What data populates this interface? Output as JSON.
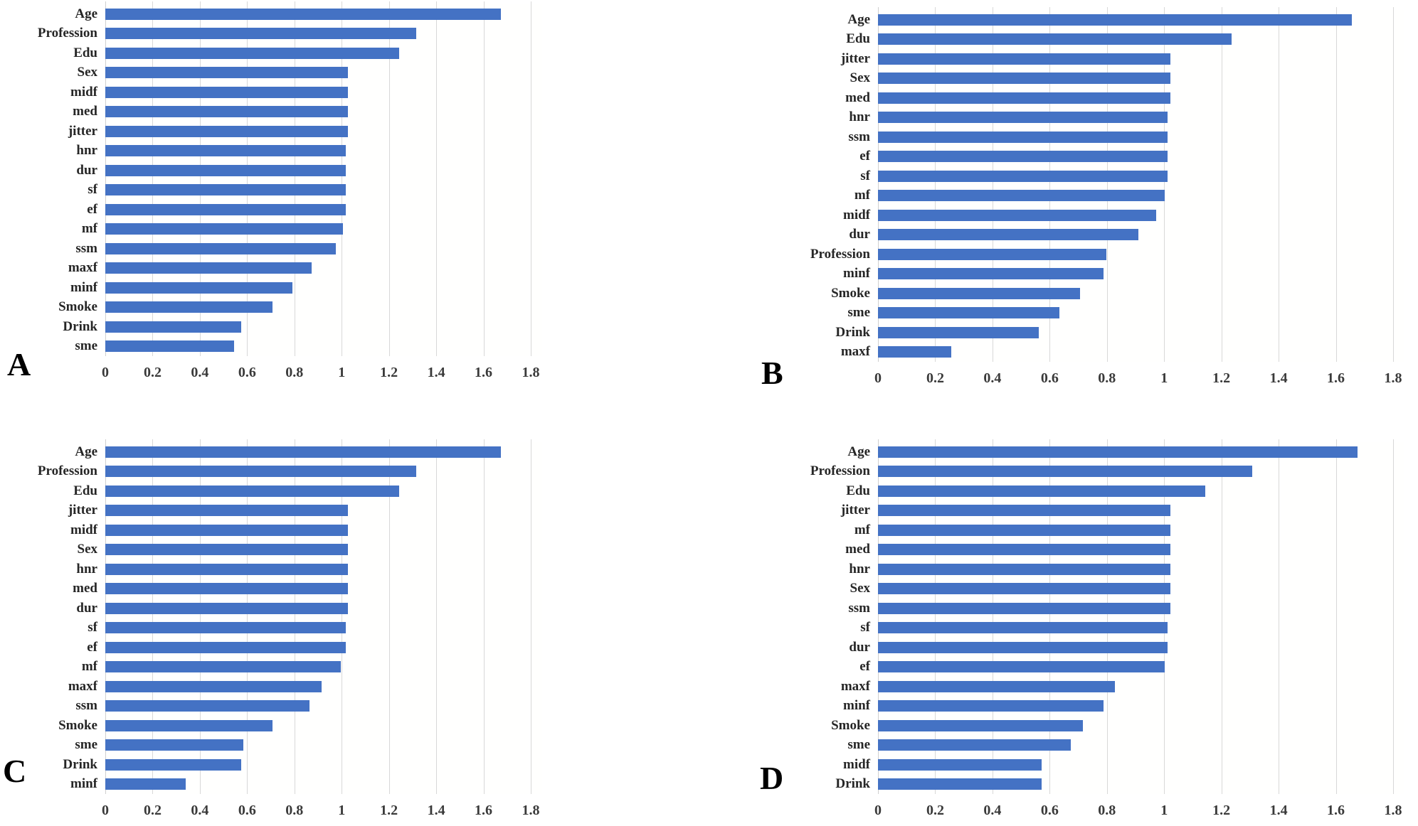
{
  "figure": {
    "panel_labels": {
      "a": "A",
      "b": "B",
      "c": "C",
      "d": "D"
    }
  },
  "style": {
    "bar_color": "#4472C4",
    "gridline_color": "#d8d8d8",
    "zero_line_color": "#cfcfcf",
    "category_label_color": "#262626",
    "tick_label_color": "#3a3a3a",
    "panel_letter_color": "#000000"
  },
  "axis": {
    "ticks": [
      0,
      0.2,
      0.4,
      0.6,
      0.8,
      1,
      1.2,
      1.4,
      1.6,
      1.8
    ],
    "tick_labels": [
      "0",
      "0.2",
      "0.4",
      "0.6",
      "0.8",
      "1",
      "1.2",
      "1.4",
      "1.6",
      "1.8"
    ],
    "max": 1.8
  },
  "chart_data": [
    {
      "id": "A",
      "type": "bar",
      "orientation": "horizontal",
      "panel_label": "A",
      "title": "",
      "xlabel": "",
      "ylabel": "",
      "xlim": [
        0,
        1.8
      ],
      "grid": true,
      "categories": [
        "Age",
        "Profession",
        "Edu",
        "Sex",
        "midf",
        "med",
        "jitter",
        "hnr",
        "dur",
        "sf",
        "ef",
        "mf",
        "ssm",
        "maxf",
        "minf",
        "Smoke",
        "Drink",
        "sme"
      ],
      "values": [
        1.63,
        1.28,
        1.21,
        1.0,
        1.0,
        1.0,
        1.0,
        0.99,
        0.99,
        0.99,
        0.99,
        0.98,
        0.95,
        0.85,
        0.77,
        0.69,
        0.56,
        0.53
      ]
    },
    {
      "id": "B",
      "type": "bar",
      "orientation": "horizontal",
      "panel_label": "B",
      "title": "",
      "xlabel": "",
      "ylabel": "",
      "xlim": [
        0,
        1.8
      ],
      "grid": true,
      "categories": [
        "Age",
        "Edu",
        "jitter",
        "Sex",
        "med",
        "hnr",
        "ssm",
        "ef",
        "sf",
        "mf",
        "midf",
        "dur",
        "Profession",
        "minf",
        "Smoke",
        "sme",
        "Drink",
        "maxf"
      ],
      "values": [
        1.62,
        1.21,
        1.0,
        1.0,
        1.0,
        0.99,
        0.99,
        0.99,
        0.99,
        0.98,
        0.95,
        0.89,
        0.78,
        0.77,
        0.69,
        0.62,
        0.55,
        0.25
      ]
    },
    {
      "id": "C",
      "type": "bar",
      "orientation": "horizontal",
      "panel_label": "C",
      "title": "",
      "xlabel": "",
      "ylabel": "",
      "xlim": [
        0,
        1.8
      ],
      "grid": true,
      "categories": [
        "Age",
        "Profession",
        "Edu",
        "jitter",
        "midf",
        "Sex",
        "hnr",
        "med",
        "dur",
        "sf",
        "ef",
        "mf",
        "maxf",
        "ssm",
        "Smoke",
        "sme",
        "Drink",
        "minf"
      ],
      "values": [
        1.63,
        1.28,
        1.21,
        1.0,
        1.0,
        1.0,
        1.0,
        1.0,
        1.0,
        0.99,
        0.99,
        0.97,
        0.89,
        0.84,
        0.69,
        0.57,
        0.56,
        0.33
      ]
    },
    {
      "id": "D",
      "type": "bar",
      "orientation": "horizontal",
      "panel_label": "D",
      "title": "",
      "xlabel": "",
      "ylabel": "",
      "xlim": [
        0,
        1.8
      ],
      "grid": true,
      "categories": [
        "Age",
        "Profession",
        "Edu",
        "jitter",
        "mf",
        "med",
        "hnr",
        "Sex",
        "ssm",
        "sf",
        "dur",
        "ef",
        "maxf",
        "minf",
        "Smoke",
        "sme",
        "midf",
        "Drink"
      ],
      "values": [
        1.64,
        1.28,
        1.12,
        1.0,
        1.0,
        1.0,
        1.0,
        1.0,
        1.0,
        0.99,
        0.99,
        0.98,
        0.81,
        0.77,
        0.7,
        0.66,
        0.56,
        0.56
      ]
    }
  ]
}
